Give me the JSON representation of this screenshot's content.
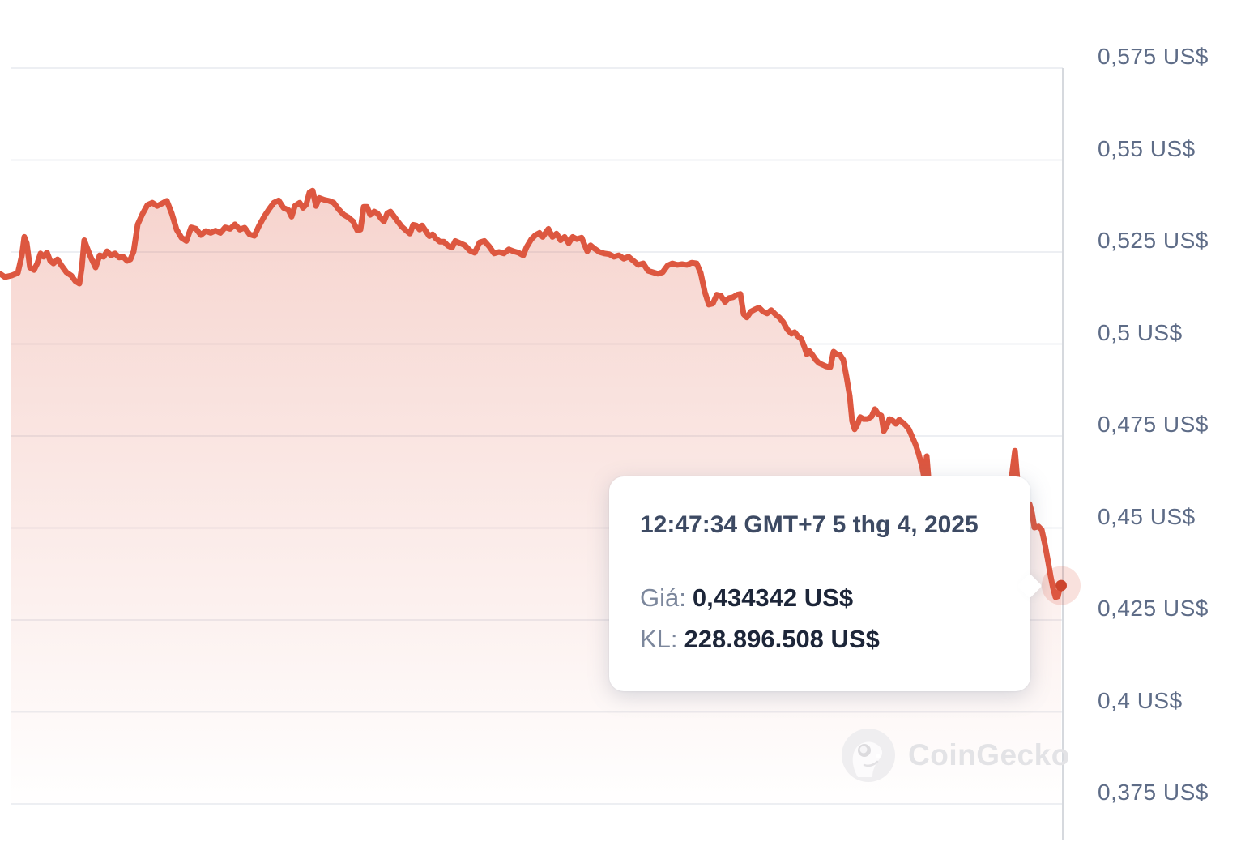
{
  "chart_data": {
    "type": "area",
    "title": "",
    "xlabel": "",
    "ylabel": "",
    "currency_unit": "US$",
    "line_color": "#dd5740",
    "dot_color": "#cd452d",
    "halo_color": "rgba(221,87,64,0.18)",
    "fill_color_top": "rgba(221,87,64,0.27)",
    "fill_color_bottom": "rgba(221,87,64,0)",
    "grid_color": "#edeff3",
    "axis_line_color": "#d6d9de",
    "label_color": "#5e6c87",
    "y_axis": {
      "labels": [
        "0,575 US$",
        "0,55 US$",
        "0,525 US$",
        "0,5 US$",
        "0,475 US$",
        "0,45 US$",
        "0,425 US$",
        "0,4 US$",
        "0,375 US$"
      ],
      "values": [
        0.575,
        0.55,
        0.525,
        0.5,
        0.475,
        0.45,
        0.425,
        0.4,
        0.375
      ],
      "side": "right",
      "ylim": [
        0.375,
        0.575
      ],
      "grid": true
    },
    "last_point": {
      "price": 0.434342,
      "price_label": "0,434342 US$"
    },
    "points": [
      [
        0,
        0.5191
      ],
      [
        6,
        0.5182
      ],
      [
        14,
        0.5186
      ],
      [
        22,
        0.5193
      ],
      [
        27,
        0.5241
      ],
      [
        30,
        0.5291
      ],
      [
        33,
        0.5274
      ],
      [
        37,
        0.5208
      ],
      [
        42,
        0.5201
      ],
      [
        46,
        0.5219
      ],
      [
        50,
        0.5246
      ],
      [
        54,
        0.5237
      ],
      [
        58,
        0.5249
      ],
      [
        62,
        0.5226
      ],
      [
        66,
        0.5219
      ],
      [
        71,
        0.523
      ],
      [
        76,
        0.5213
      ],
      [
        82,
        0.5195
      ],
      [
        88,
        0.5186
      ],
      [
        93,
        0.5171
      ],
      [
        98,
        0.5164
      ],
      [
        101,
        0.5208
      ],
      [
        104,
        0.5282
      ],
      [
        107,
        0.5264
      ],
      [
        112,
        0.5236
      ],
      [
        118,
        0.5208
      ],
      [
        123,
        0.5241
      ],
      [
        128,
        0.5237
      ],
      [
        132,
        0.5252
      ],
      [
        137,
        0.5241
      ],
      [
        142,
        0.5246
      ],
      [
        147,
        0.5235
      ],
      [
        152,
        0.5237
      ],
      [
        157,
        0.5226
      ],
      [
        161,
        0.523
      ],
      [
        165,
        0.5252
      ],
      [
        170,
        0.5325
      ],
      [
        176,
        0.5354
      ],
      [
        182,
        0.5378
      ],
      [
        188,
        0.5384
      ],
      [
        194,
        0.5375
      ],
      [
        200,
        0.5382
      ],
      [
        206,
        0.5389
      ],
      [
        212,
        0.5355
      ],
      [
        218,
        0.5311
      ],
      [
        224,
        0.5289
      ],
      [
        230,
        0.528
      ],
      [
        236,
        0.5317
      ],
      [
        242,
        0.5313
      ],
      [
        248,
        0.5296
      ],
      [
        254,
        0.5307
      ],
      [
        260,
        0.5302
      ],
      [
        266,
        0.5308
      ],
      [
        272,
        0.5302
      ],
      [
        278,
        0.5317
      ],
      [
        284,
        0.5313
      ],
      [
        290,
        0.5325
      ],
      [
        296,
        0.5311
      ],
      [
        302,
        0.5316
      ],
      [
        308,
        0.5298
      ],
      [
        314,
        0.5294
      ],
      [
        320,
        0.5322
      ],
      [
        326,
        0.5346
      ],
      [
        332,
        0.5366
      ],
      [
        338,
        0.5384
      ],
      [
        344,
        0.539
      ],
      [
        350,
        0.537
      ],
      [
        356,
        0.5364
      ],
      [
        360,
        0.5346
      ],
      [
        364,
        0.5375
      ],
      [
        370,
        0.5384
      ],
      [
        374,
        0.537
      ],
      [
        378,
        0.5379
      ],
      [
        382,
        0.5412
      ],
      [
        386,
        0.5417
      ],
      [
        390,
        0.5375
      ],
      [
        394,
        0.5397
      ],
      [
        400,
        0.5392
      ],
      [
        406,
        0.5389
      ],
      [
        412,
        0.5384
      ],
      [
        418,
        0.5366
      ],
      [
        424,
        0.5352
      ],
      [
        430,
        0.5344
      ],
      [
        436,
        0.5333
      ],
      [
        441,
        0.5309
      ],
      [
        445,
        0.5311
      ],
      [
        449,
        0.5373
      ],
      [
        453,
        0.5373
      ],
      [
        457,
        0.5351
      ],
      [
        462,
        0.536
      ],
      [
        466,
        0.5355
      ],
      [
        470,
        0.5342
      ],
      [
        474,
        0.5333
      ],
      [
        478,
        0.5355
      ],
      [
        482,
        0.536
      ],
      [
        486,
        0.5348
      ],
      [
        491,
        0.5333
      ],
      [
        496,
        0.5319
      ],
      [
        501,
        0.5309
      ],
      [
        506,
        0.53
      ],
      [
        510,
        0.5324
      ],
      [
        514,
        0.5322
      ],
      [
        518,
        0.5311
      ],
      [
        521,
        0.5322
      ],
      [
        525,
        0.5309
      ],
      [
        530,
        0.5293
      ],
      [
        534,
        0.5298
      ],
      [
        538,
        0.5287
      ],
      [
        543,
        0.5278
      ],
      [
        548,
        0.5278
      ],
      [
        553,
        0.5267
      ],
      [
        558,
        0.5262
      ],
      [
        562,
        0.528
      ],
      [
        568,
        0.5274
      ],
      [
        574,
        0.5268
      ],
      [
        580,
        0.5254
      ],
      [
        586,
        0.5248
      ],
      [
        592,
        0.5276
      ],
      [
        598,
        0.528
      ],
      [
        604,
        0.5265
      ],
      [
        610,
        0.5246
      ],
      [
        616,
        0.525
      ],
      [
        622,
        0.5246
      ],
      [
        628,
        0.5257
      ],
      [
        634,
        0.5252
      ],
      [
        640,
        0.5248
      ],
      [
        646,
        0.5241
      ],
      [
        650,
        0.5263
      ],
      [
        656,
        0.5285
      ],
      [
        661,
        0.5296
      ],
      [
        666,
        0.5302
      ],
      [
        670,
        0.5291
      ],
      [
        677,
        0.5313
      ],
      [
        682,
        0.5291
      ],
      [
        687,
        0.53
      ],
      [
        692,
        0.5282
      ],
      [
        697,
        0.5291
      ],
      [
        702,
        0.5274
      ],
      [
        707,
        0.5291
      ],
      [
        712,
        0.5285
      ],
      [
        718,
        0.5289
      ],
      [
        725,
        0.5252
      ],
      [
        729,
        0.5268
      ],
      [
        734,
        0.5259
      ],
      [
        740,
        0.525
      ],
      [
        746,
        0.5246
      ],
      [
        752,
        0.5244
      ],
      [
        758,
        0.5237
      ],
      [
        764,
        0.5241
      ],
      [
        770,
        0.5232
      ],
      [
        776,
        0.5237
      ],
      [
        782,
        0.5226
      ],
      [
        788,
        0.5215
      ],
      [
        794,
        0.5219
      ],
      [
        800,
        0.5199
      ],
      [
        806,
        0.5195
      ],
      [
        812,
        0.5191
      ],
      [
        818,
        0.5195
      ],
      [
        824,
        0.5213
      ],
      [
        830,
        0.5219
      ],
      [
        836,
        0.5215
      ],
      [
        842,
        0.5217
      ],
      [
        848,
        0.5215
      ],
      [
        854,
        0.5221
      ],
      [
        860,
        0.5219
      ],
      [
        865,
        0.5193
      ],
      [
        870,
        0.5142
      ],
      [
        875,
        0.5107
      ],
      [
        880,
        0.511
      ],
      [
        885,
        0.5134
      ],
      [
        890,
        0.5131
      ],
      [
        895,
        0.5114
      ],
      [
        900,
        0.5125
      ],
      [
        905,
        0.5127
      ],
      [
        910,
        0.5134
      ],
      [
        914,
        0.5136
      ],
      [
        918,
        0.5081
      ],
      [
        922,
        0.5072
      ],
      [
        927,
        0.5088
      ],
      [
        932,
        0.5094
      ],
      [
        937,
        0.5099
      ],
      [
        942,
        0.5088
      ],
      [
        947,
        0.5083
      ],
      [
        952,
        0.5092
      ],
      [
        957,
        0.5081
      ],
      [
        962,
        0.5072
      ],
      [
        967,
        0.5059
      ],
      [
        972,
        0.5039
      ],
      [
        977,
        0.5028
      ],
      [
        981,
        0.5032
      ],
      [
        985,
        0.5021
      ],
      [
        989,
        0.5014
      ],
      [
        993,
        0.4992
      ],
      [
        996,
        0.4972
      ],
      [
        999,
        0.4981
      ],
      [
        1003,
        0.497
      ],
      [
        1007,
        0.4957
      ],
      [
        1011,
        0.4948
      ],
      [
        1015,
        0.4944
      ],
      [
        1020,
        0.4939
      ],
      [
        1025,
        0.4937
      ],
      [
        1029,
        0.4979
      ],
      [
        1033,
        0.4972
      ],
      [
        1037,
        0.497
      ],
      [
        1041,
        0.4957
      ],
      [
        1045,
        0.4911
      ],
      [
        1049,
        0.4858
      ],
      [
        1052,
        0.479
      ],
      [
        1055,
        0.4768
      ],
      [
        1058,
        0.4779
      ],
      [
        1062,
        0.4801
      ],
      [
        1066,
        0.4796
      ],
      [
        1071,
        0.4796
      ],
      [
        1076,
        0.4803
      ],
      [
        1080,
        0.4823
      ],
      [
        1084,
        0.481
      ],
      [
        1088,
        0.4805
      ],
      [
        1091,
        0.4763
      ],
      [
        1094,
        0.4774
      ],
      [
        1098,
        0.4796
      ],
      [
        1102,
        0.4792
      ],
      [
        1106,
        0.4783
      ],
      [
        1110,
        0.4794
      ],
      [
        1114,
        0.4787
      ],
      [
        1118,
        0.4779
      ],
      [
        1122,
        0.4768
      ],
      [
        1126,
        0.4748
      ],
      [
        1130,
        0.4728
      ],
      [
        1134,
        0.4702
      ],
      [
        1138,
        0.4669
      ],
      [
        1141,
        0.4636
      ],
      [
        1144,
        0.4695
      ],
      [
        1147,
        0.4614
      ],
      [
        1152,
        0.4592
      ],
      [
        1160,
        0.4574
      ],
      [
        1170,
        0.4559
      ],
      [
        1180,
        0.4543
      ],
      [
        1190,
        0.4534
      ],
      [
        1200,
        0.4526
      ],
      [
        1210,
        0.4515
      ],
      [
        1220,
        0.4508
      ],
      [
        1230,
        0.4512
      ],
      [
        1240,
        0.453
      ],
      [
        1246,
        0.4587
      ],
      [
        1250,
        0.4658
      ],
      [
        1253,
        0.471
      ],
      [
        1256,
        0.4631
      ],
      [
        1259,
        0.4574
      ],
      [
        1263,
        0.4552
      ],
      [
        1267,
        0.4556
      ],
      [
        1271,
        0.4565
      ],
      [
        1274,
        0.4541
      ],
      [
        1277,
        0.4501
      ],
      [
        1282,
        0.4504
      ],
      [
        1286,
        0.4495
      ],
      [
        1290,
        0.4455
      ],
      [
        1294,
        0.4407
      ],
      [
        1297,
        0.4369
      ],
      [
        1300,
        0.4336
      ],
      [
        1303,
        0.4312
      ],
      [
        1306,
        0.4314
      ],
      [
        1308,
        0.4334
      ],
      [
        1310,
        0.434342
      ]
    ]
  },
  "tooltip": {
    "timestamp": "12:47:34 GMT+7 5 thg 4, 2025",
    "price_label": "Giá:",
    "price_value": "0,434342 US$",
    "volume_label": "KL:",
    "volume_value": "228.896.508 US$"
  },
  "watermark": {
    "text": "CoinGecko"
  }
}
